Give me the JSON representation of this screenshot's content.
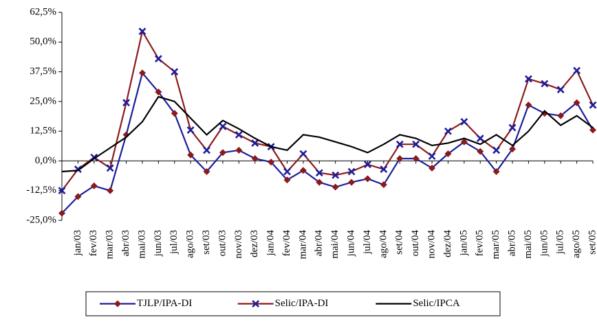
{
  "chart_data": {
    "type": "line",
    "categories": [
      null,
      "jan/03",
      "fev/03",
      "mar/03",
      "abr/03",
      "mai/03",
      "jun/03",
      "jul/03",
      "ago/03",
      "set/03",
      "out/03",
      "nov/03",
      "dez/03",
      "jan/04",
      "fev/04",
      "mar/04",
      "abr/04",
      "mai/04",
      "jun/04",
      "jul/04",
      "ago/04",
      "set/04",
      "out/04",
      "nov/04",
      "dez/04",
      "jan/05",
      "fev/05",
      "mar/05",
      "abr/05",
      "mai/05",
      "jun/05",
      "jul/05",
      "ago/05",
      "set/05"
    ],
    "series": [
      {
        "name": "TJLP/IPA-DI",
        "color": "#1c1c9c",
        "marker": "diamond",
        "marker_color": "#8b1a1a",
        "values": [
          -22,
          -15,
          -10.5,
          -12.5,
          11,
          37,
          29,
          20,
          2.5,
          -4.5,
          3.5,
          4.5,
          1,
          -0.5,
          -8,
          -4,
          -9,
          -11,
          -9,
          -7.5,
          -10,
          1,
          1,
          -3,
          3,
          8,
          4,
          -4.5,
          5,
          23.5,
          20,
          19,
          24.5,
          13
        ]
      },
      {
        "name": "Selic/IPA-DI",
        "color": "#8b1a1a",
        "marker": "x",
        "marker_color": "#1c1c9c",
        "values": [
          -12.5,
          -3.5,
          1.5,
          -3,
          24.5,
          54.5,
          43,
          37.5,
          13,
          4.5,
          14.5,
          11,
          7.5,
          6,
          -4.5,
          3,
          -5,
          -6,
          -4.5,
          -1.5,
          -3.5,
          7,
          7,
          2,
          12.5,
          16.5,
          9.5,
          4.5,
          14,
          34.5,
          32.5,
          30,
          38,
          23.5
        ]
      },
      {
        "name": "Selic/IPCA",
        "color": "#000000",
        "marker": null,
        "marker_color": null,
        "values": [
          -4.5,
          -4,
          1,
          5.5,
          10,
          16.5,
          27,
          25,
          18,
          11,
          17,
          13.5,
          9.5,
          6,
          4.5,
          11,
          10,
          8,
          6,
          3.5,
          7,
          11,
          9.5,
          6.5,
          7.5,
          9.5,
          7,
          11,
          6.5,
          12.5,
          21,
          15,
          19,
          14
        ]
      }
    ],
    "ylim": [
      -25,
      62.5
    ],
    "yticks": [
      {
        "value": -25,
        "label": "-25,0%"
      },
      {
        "value": -12.5,
        "label": "-12,5%"
      },
      {
        "value": 0,
        "label": "0,0%"
      },
      {
        "value": 12.5,
        "label": "12,5%"
      },
      {
        "value": 25,
        "label": "25,0%"
      },
      {
        "value": 37.5,
        "label": "37,5%"
      },
      {
        "value": 50,
        "label": "50,0%"
      },
      {
        "value": 62.5,
        "label": "62,5%"
      }
    ],
    "grid": false,
    "legend": "bottom"
  }
}
